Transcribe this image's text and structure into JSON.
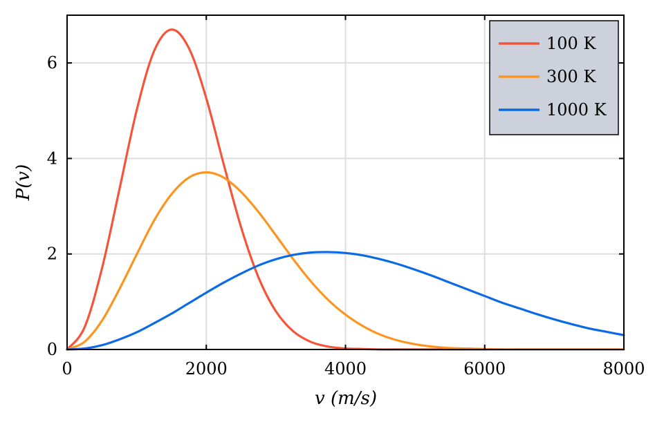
{
  "chart_data": {
    "type": "line",
    "title": "",
    "xlabel": "v (m/s)",
    "ylabel": "P(v)",
    "xlim": [
      0,
      8000
    ],
    "ylim": [
      0,
      7
    ],
    "xticks": [
      0,
      2000,
      4000,
      6000,
      8000
    ],
    "xtick_labels": [
      "0",
      "2000",
      "4000",
      "6000",
      "8000"
    ],
    "yticks": [
      0,
      2,
      4,
      6
    ],
    "ytick_labels": [
      "0",
      "2",
      "4",
      "6"
    ],
    "grid": true,
    "legend_position": "top-right",
    "x": [
      0,
      250,
      500,
      750,
      1000,
      1250,
      1500,
      1750,
      2000,
      2250,
      2500,
      2750,
      3000,
      3250,
      3500,
      3750,
      4000,
      4250,
      4500,
      4750,
      5000,
      5250,
      5500,
      5750,
      6000,
      6250,
      6500,
      6750,
      7000,
      7250,
      7500,
      7750,
      8000
    ],
    "series": [
      {
        "name": "100 K",
        "color": "#f4553a",
        "values": [
          0,
          0.46,
          1.69,
          3.34,
          5.01,
          6.25,
          6.7,
          6.31,
          5.26,
          3.88,
          2.56,
          1.51,
          0.8,
          0.38,
          0.16,
          0.06,
          0.02,
          0.01,
          0,
          0,
          0,
          0,
          0,
          0,
          0,
          0,
          0,
          0,
          0,
          0,
          0,
          0,
          0
        ]
      },
      {
        "name": "300 K",
        "color": "#fc9520",
        "values": [
          0,
          0.16,
          0.6,
          1.26,
          1.99,
          2.7,
          3.25,
          3.6,
          3.71,
          3.6,
          3.3,
          2.88,
          2.39,
          1.89,
          1.43,
          1.04,
          0.73,
          0.49,
          0.31,
          0.19,
          0.11,
          0.06,
          0.03,
          0.02,
          0.01,
          0,
          0,
          0,
          0,
          0,
          0,
          0,
          0
        ]
      },
      {
        "name": "1000 K",
        "color": "#0b6ae6",
        "values": [
          0,
          0.02,
          0.09,
          0.21,
          0.36,
          0.55,
          0.75,
          0.97,
          1.19,
          1.4,
          1.59,
          1.76,
          1.89,
          1.98,
          2.03,
          2.04,
          2.02,
          1.97,
          1.89,
          1.79,
          1.67,
          1.54,
          1.4,
          1.26,
          1.12,
          0.98,
          0.86,
          0.74,
          0.63,
          0.53,
          0.44,
          0.37,
          0.3
        ]
      }
    ]
  }
}
